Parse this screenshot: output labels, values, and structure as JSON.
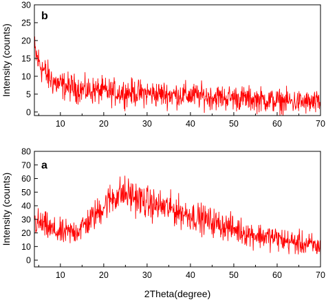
{
  "chart_data": [
    {
      "type": "line",
      "panel_label": "b",
      "ylabel": "Intensity (counts)",
      "xlabel": "",
      "xlim": [
        4,
        70
      ],
      "ylim": [
        -1,
        30
      ],
      "x_ticks": [
        10,
        20,
        30,
        40,
        50,
        60,
        70
      ],
      "x_tick_labels": [
        "10",
        "20",
        "30",
        "40",
        "50",
        "60",
        "70"
      ],
      "y_ticks": [
        0,
        5,
        10,
        15,
        20,
        25,
        30
      ],
      "y_tick_labels": [
        "0",
        "5",
        "10",
        "15",
        "20",
        "25",
        "30"
      ],
      "grid": false,
      "color": "#ff0000",
      "series": [
        {
          "x": [
            4,
            5,
            6,
            7,
            8,
            9,
            10,
            12,
            14,
            16,
            18,
            20,
            22,
            24,
            26,
            28,
            30,
            32,
            34,
            36,
            38,
            40,
            42,
            44,
            46,
            48,
            50,
            52,
            54,
            56,
            58,
            60,
            62,
            64,
            66,
            68,
            70
          ],
          "values": [
            17,
            14,
            12,
            10,
            9,
            8,
            7.5,
            7,
            6.5,
            6,
            6,
            5.8,
            5.5,
            5.5,
            5.5,
            5.3,
            5.2,
            5,
            5,
            4.8,
            4.8,
            4.6,
            4.5,
            4.3,
            4.2,
            4,
            4,
            3.8,
            3.6,
            3.5,
            3.3,
            3,
            3,
            2.8,
            2.7,
            2.5,
            2.4
          ],
          "noise": 2.5
        }
      ]
    },
    {
      "type": "line",
      "panel_label": "a",
      "ylabel": "Intensity (counts)",
      "xlabel": "2Theta(degree)",
      "xlim": [
        4,
        70
      ],
      "ylim": [
        -5,
        80
      ],
      "x_ticks": [
        10,
        20,
        30,
        40,
        50,
        60,
        70
      ],
      "x_tick_labels": [
        "10",
        "20",
        "30",
        "40",
        "50",
        "60",
        "70"
      ],
      "y_ticks": [
        0,
        10,
        20,
        30,
        40,
        50,
        60,
        70,
        80
      ],
      "y_tick_labels": [
        "0",
        "10",
        "20",
        "30",
        "40",
        "50",
        "60",
        "70",
        "80"
      ],
      "grid": false,
      "color": "#ff0000",
      "series": [
        {
          "x": [
            4,
            6,
            8,
            10,
            12,
            14,
            16,
            18,
            20,
            22,
            24,
            26,
            28,
            30,
            32,
            34,
            36,
            38,
            40,
            42,
            44,
            46,
            48,
            50,
            52,
            54,
            56,
            58,
            60,
            62,
            64,
            66,
            68,
            70
          ],
          "values": [
            28,
            26,
            22,
            20,
            20,
            22,
            27,
            33,
            40,
            46,
            49,
            48,
            45,
            42,
            40,
            39,
            37,
            35,
            33,
            31,
            29,
            27,
            25,
            23,
            21,
            19,
            18,
            17,
            16,
            14,
            13,
            12,
            11,
            9
          ],
          "noise": 6
        }
      ]
    }
  ]
}
